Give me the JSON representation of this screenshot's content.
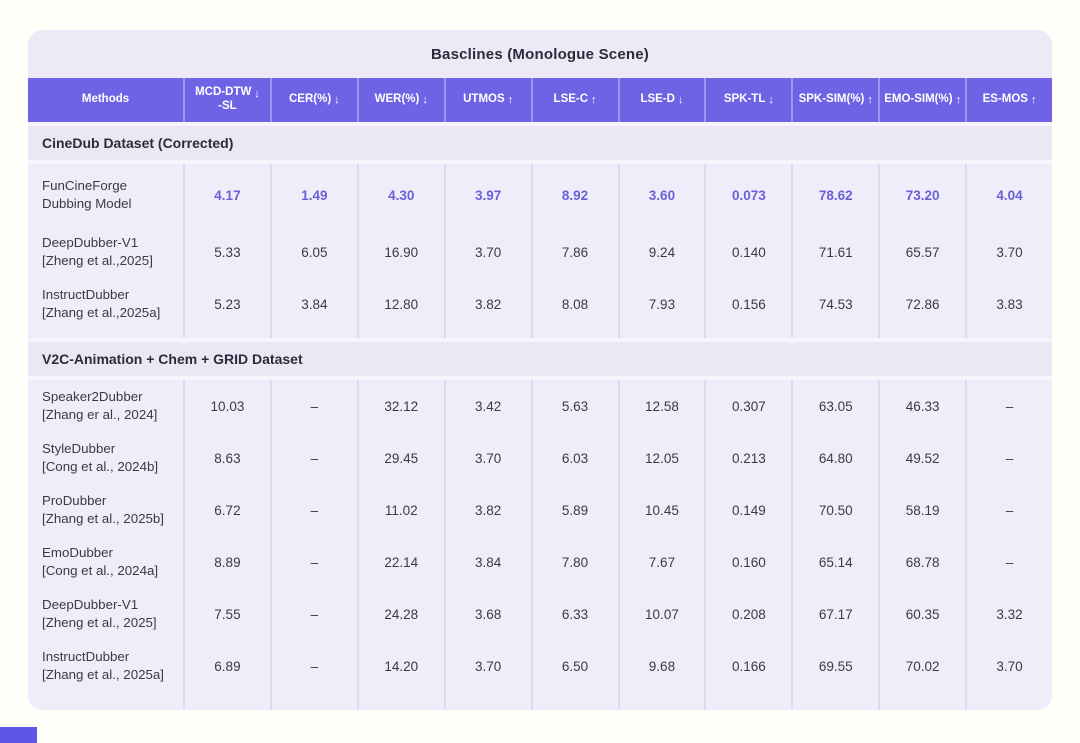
{
  "title": "Basclines (Monologue Scene)",
  "colors": {
    "header_bg": "#6E63E5",
    "card_bg": "#ECEAF6",
    "row_bg": "#EFEDF9",
    "accent_text": "#6B5FD8",
    "dark_text": "#3A3A47",
    "separator": "#DEDAF0",
    "page_bg": "#FFFEF8",
    "corner_accent": "#5F55E8"
  },
  "chart_data": {
    "type": "table",
    "title": "Basclines (Monologue Scene)",
    "columns": [
      {
        "label": "Methods",
        "arrow": ""
      },
      {
        "label": "MCD-DTW",
        "sublabel": "-SL",
        "arrow": "↓"
      },
      {
        "label": "CER(%)",
        "arrow": "↓"
      },
      {
        "label": "WER(%)",
        "arrow": "↓"
      },
      {
        "label": "UTMOS",
        "arrow": "↑"
      },
      {
        "label": "LSE-C",
        "arrow": "↑"
      },
      {
        "label": "LSE-D",
        "arrow": "↓"
      },
      {
        "label": "SPK-TL",
        "arrow": "↓"
      },
      {
        "label": "SPK-SIM(%)",
        "arrow": "↑"
      },
      {
        "label": "EMO-SIM(%)",
        "arrow": "↑"
      },
      {
        "label": "ES-MOS",
        "arrow": "↑"
      }
    ],
    "sections": [
      {
        "header": "CineDub Dataset (Corrected)",
        "rows": [
          {
            "name_lines": [
              "FunCineForge",
              "Dubbing Model"
            ],
            "highlight": true,
            "values": [
              "4.17",
              "1.49",
              "4.30",
              "3.97",
              "8.92",
              "3.60",
              "0.073",
              "78.62",
              "73.20",
              "4.04"
            ]
          },
          {
            "name_lines": [
              "DeepDubber-V1",
              "[Zheng et al.,2025]"
            ],
            "highlight": false,
            "values": [
              "5.33",
              "6.05",
              "16.90",
              "3.70",
              "7.86",
              "9.24",
              "0.140",
              "71.61",
              "65.57",
              "3.70"
            ]
          },
          {
            "name_lines": [
              "InstructDubber",
              "[Zhang et al.,2025a]"
            ],
            "highlight": false,
            "values": [
              "5.23",
              "3.84",
              "12.80",
              "3.82",
              "8.08",
              "7.93",
              "0.156",
              "74.53",
              "72.86",
              "3.83"
            ]
          }
        ]
      },
      {
        "header": "V2C-Animation + Chem + GRID Dataset",
        "rows": [
          {
            "name_lines": [
              "Speaker2Dubber",
              "[Zhang er al., 2024]"
            ],
            "highlight": false,
            "values": [
              "10.03",
              "–",
              "32.12",
              "3.42",
              "5.63",
              "12.58",
              "0.307",
              "63.05",
              "46.33",
              "–"
            ]
          },
          {
            "name_lines": [
              "StyleDubber",
              "[Cong et al., 2024b]"
            ],
            "highlight": false,
            "values": [
              "8.63",
              "–",
              "29.45",
              "3.70",
              "6.03",
              "12.05",
              "0.213",
              "64.80",
              "49.52",
              "–"
            ]
          },
          {
            "name_lines": [
              "ProDubber",
              "[Zhang et al., 2025b]"
            ],
            "highlight": false,
            "values": [
              "6.72",
              "–",
              "11.02",
              "3.82",
              "5.89",
              "10.45",
              "0.149",
              "70.50",
              "58.19",
              "–"
            ]
          },
          {
            "name_lines": [
              "EmoDubber",
              "[Cong et al., 2024a]"
            ],
            "highlight": false,
            "values": [
              "8.89",
              "–",
              "22.14",
              "3.84",
              "7.80",
              "7.67",
              "0.160",
              "65.14",
              "68.78",
              "–"
            ]
          },
          {
            "name_lines": [
              "DeepDubber-V1",
              "[Zheng et al., 2025]"
            ],
            "highlight": false,
            "values": [
              "7.55",
              "–",
              "24.28",
              "3.68",
              "6.33",
              "10.07",
              "0.208",
              "67.17",
              "60.35",
              "3.32"
            ]
          },
          {
            "name_lines": [
              "InstructDubber",
              "[Zhang et al., 2025a]"
            ],
            "highlight": false,
            "values": [
              "6.89",
              "–",
              "14.20",
              "3.70",
              "6.50",
              "9.68",
              "0.166",
              "69.55",
              "70.02",
              "3.70"
            ]
          }
        ]
      }
    ]
  }
}
